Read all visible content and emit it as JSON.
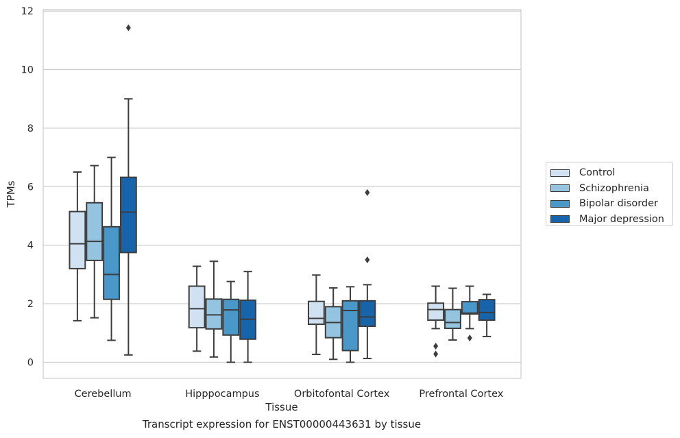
{
  "chart_data": {
    "type": "box",
    "xlabel": "Tissue",
    "ylabel": "TPMs",
    "ylim": [
      -0.55,
      12.05
    ],
    "yticks": [
      0,
      2,
      4,
      6,
      8,
      10,
      12
    ],
    "grid": "horizontal",
    "legend_position": "right",
    "categories": [
      "Cerebellum",
      "Hipppocampus",
      "Orbitofontal Cortex",
      "Prefrontal Cortex"
    ],
    "series": [
      {
        "name": "Control",
        "color": "#d0e1f2",
        "boxes": [
          {
            "whislo": 1.42,
            "q1": 3.2,
            "med": 4.05,
            "q3": 5.15,
            "whishi": 6.5,
            "fliers": []
          },
          {
            "whislo": 0.38,
            "q1": 1.18,
            "med": 1.83,
            "q3": 2.6,
            "whishi": 3.28,
            "fliers": []
          },
          {
            "whislo": 0.27,
            "q1": 1.3,
            "med": 1.5,
            "q3": 2.08,
            "whishi": 2.98,
            "fliers": []
          },
          {
            "whislo": 1.15,
            "q1": 1.44,
            "med": 1.8,
            "q3": 2.02,
            "whishi": 2.6,
            "fliers": [
              0.55,
              0.28
            ]
          }
        ]
      },
      {
        "name": "Schizophrenia",
        "color": "#94c4df",
        "boxes": [
          {
            "whislo": 1.52,
            "q1": 3.48,
            "med": 4.13,
            "q3": 5.45,
            "whishi": 6.72,
            "fliers": []
          },
          {
            "whislo": 0.18,
            "q1": 1.14,
            "med": 1.62,
            "q3": 2.16,
            "whishi": 3.45,
            "fliers": []
          },
          {
            "whislo": 0.1,
            "q1": 0.84,
            "med": 1.36,
            "q3": 1.9,
            "whishi": 2.54,
            "fliers": []
          },
          {
            "whislo": 0.76,
            "q1": 1.16,
            "med": 1.36,
            "q3": 1.8,
            "whishi": 2.53,
            "fliers": []
          }
        ]
      },
      {
        "name": "Bipolar disorder",
        "color": "#4a98c9",
        "boxes": [
          {
            "whislo": 0.75,
            "q1": 2.15,
            "med": 3.0,
            "q3": 4.63,
            "whishi": 7.0,
            "fliers": []
          },
          {
            "whislo": 0.0,
            "q1": 0.93,
            "med": 1.79,
            "q3": 2.15,
            "whishi": 2.76,
            "fliers": []
          },
          {
            "whislo": 0.0,
            "q1": 0.4,
            "med": 1.77,
            "q3": 2.1,
            "whishi": 2.58,
            "fliers": []
          },
          {
            "whislo": 1.15,
            "q1": 1.65,
            "med": 1.68,
            "q3": 2.07,
            "whishi": 2.6,
            "fliers": [
              0.83
            ]
          }
        ]
      },
      {
        "name": "Major depression",
        "color": "#1764ab",
        "boxes": [
          {
            "whislo": 0.25,
            "q1": 3.75,
            "med": 5.13,
            "q3": 6.32,
            "whishi": 9.0,
            "fliers": [
              11.43
            ]
          },
          {
            "whislo": 0.0,
            "q1": 0.79,
            "med": 1.47,
            "q3": 2.12,
            "whishi": 3.1,
            "fliers": []
          },
          {
            "whislo": 0.13,
            "q1": 1.23,
            "med": 1.55,
            "q3": 2.1,
            "whishi": 2.65,
            "fliers": [
              5.8,
              3.5
            ]
          },
          {
            "whislo": 0.88,
            "q1": 1.44,
            "med": 1.7,
            "q3": 2.14,
            "whishi": 2.32,
            "fliers": []
          }
        ]
      }
    ]
  },
  "caption": "Transcript expression for ENST00000443631 by tissue"
}
